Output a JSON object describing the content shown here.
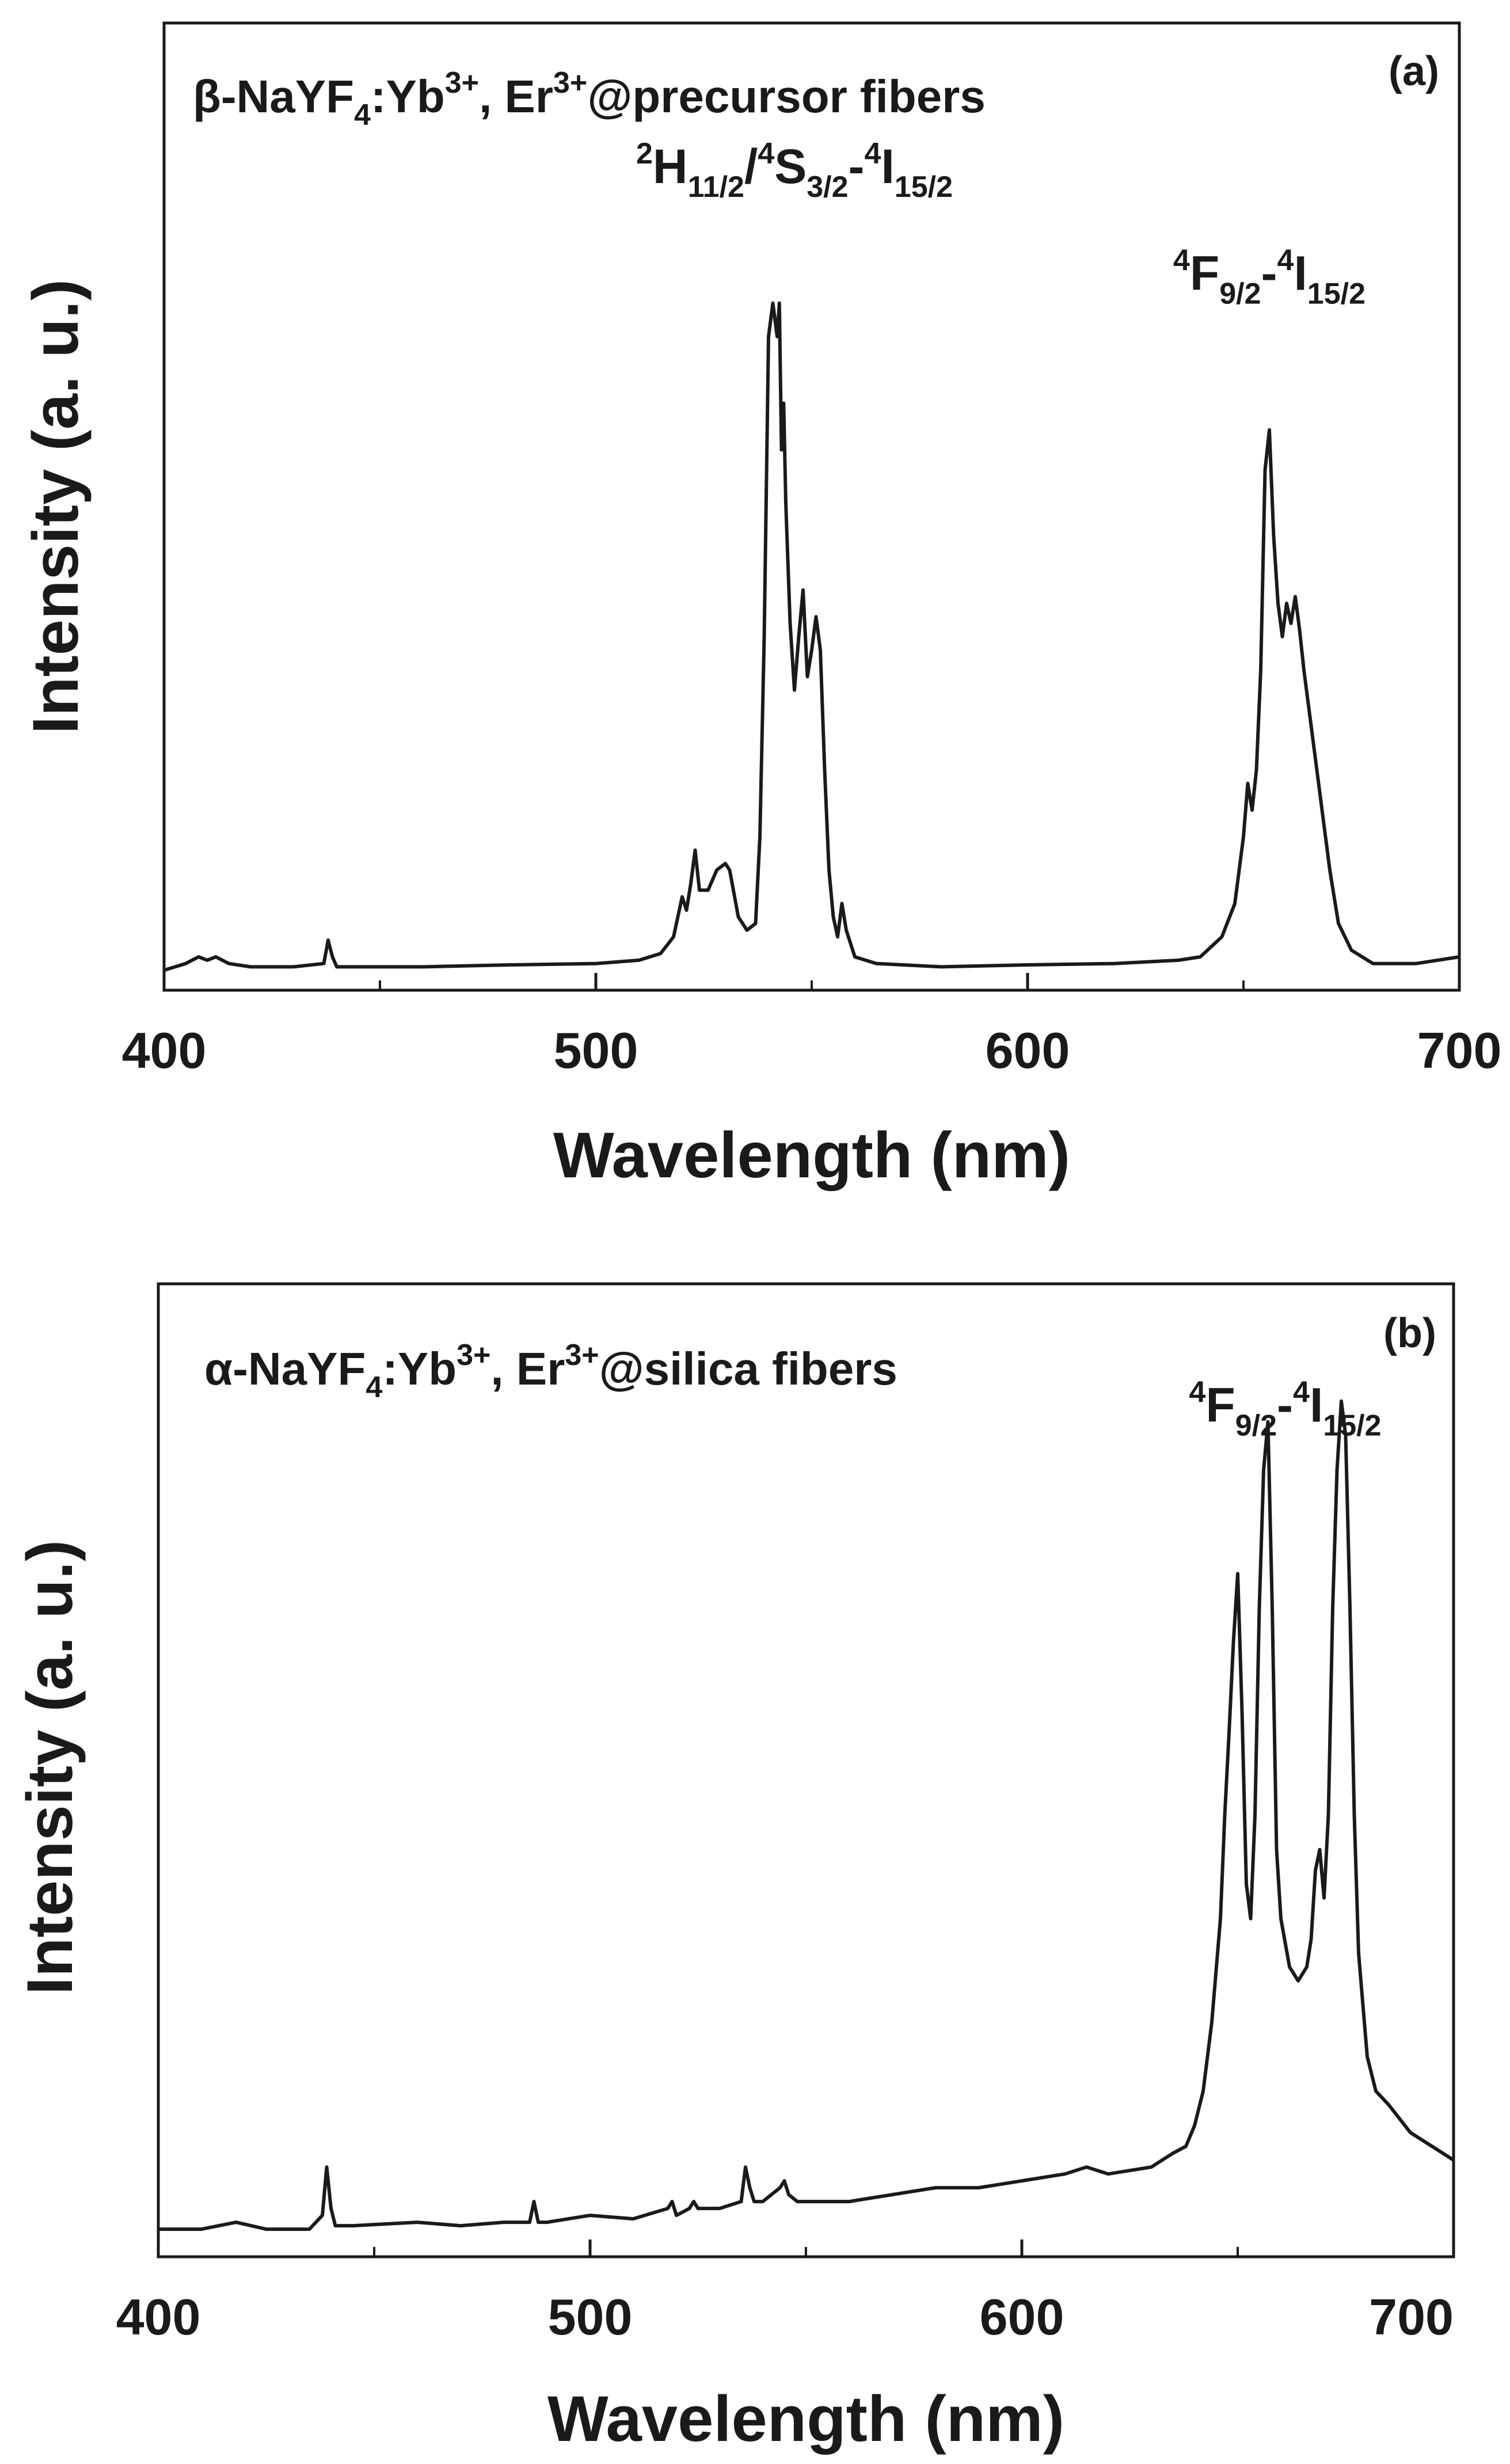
{
  "chart_data": [
    {
      "type": "line",
      "panel_label": "(a)",
      "sample": {
        "greek": "β",
        "text1": "-NaYF",
        "sub1": "4",
        "text2": ":Yb",
        "sup1": "3+",
        "text3": ", Er",
        "sup2": "3+",
        "text4": "@precursor fibers"
      },
      "annotations": [
        {
          "id": "green",
          "parts": [
            {
              "t": "2",
              "s": "sup"
            },
            {
              "t": "H",
              "s": "n"
            },
            {
              "t": "11/2",
              "s": "sub"
            },
            {
              "t": "/",
              "s": "n"
            },
            {
              "t": "4",
              "s": "sup"
            },
            {
              "t": "S",
              "s": "n"
            },
            {
              "t": "3/2",
              "s": "sub"
            },
            {
              "t": "-",
              "s": "n"
            },
            {
              "t": "4",
              "s": "sup"
            },
            {
              "t": "I",
              "s": "n"
            },
            {
              "t": "15/2",
              "s": "sub"
            }
          ],
          "x": 546,
          "y": 1.18
        },
        {
          "id": "red",
          "parts": [
            {
              "t": "4",
              "s": "sup"
            },
            {
              "t": "F",
              "s": "n"
            },
            {
              "t": "9/2",
              "s": "sub"
            },
            {
              "t": "-",
              "s": "n"
            },
            {
              "t": "4",
              "s": "sup"
            },
            {
              "t": "I",
              "s": "n"
            },
            {
              "t": "15/2",
              "s": "sub"
            }
          ],
          "x": 656,
          "y": 1.02
        }
      ],
      "xlabel": "Wavelength (nm)",
      "ylabel": "Intensity (a. u.)",
      "xlim": [
        400,
        700
      ],
      "ylim": [
        -0.03,
        1.42
      ],
      "xticks": [
        400,
        500,
        600,
        700
      ],
      "xtick_labels": [
        "400",
        "500",
        "600",
        "700"
      ],
      "series": [
        {
          "name": "β-NaYF4:Yb3+, Er3+@precursor fibers",
          "x": [
            400,
            405,
            408,
            410,
            412,
            415,
            420,
            430,
            437,
            438,
            439,
            440,
            441,
            445,
            460,
            480,
            500,
            510,
            515,
            518,
            520,
            521,
            522,
            523,
            524,
            526,
            528,
            530,
            531,
            533,
            535,
            537,
            538,
            539,
            540,
            541,
            542,
            542.5,
            543,
            543.5,
            544,
            545,
            546,
            547,
            548,
            549,
            550,
            551,
            552,
            553,
            554,
            555,
            556,
            557,
            558,
            560,
            565,
            580,
            600,
            620,
            635,
            640,
            645,
            648,
            650,
            651,
            652,
            653,
            654,
            655,
            656,
            657,
            658,
            659,
            660,
            661,
            662,
            663,
            664,
            666,
            668,
            670,
            672,
            675,
            680,
            690,
            700
          ],
          "y": [
            0.0,
            0.01,
            0.02,
            0.015,
            0.02,
            0.01,
            0.005,
            0.005,
            0.01,
            0.045,
            0.02,
            0.005,
            0.005,
            0.005,
            0.005,
            0.008,
            0.01,
            0.015,
            0.025,
            0.05,
            0.11,
            0.09,
            0.13,
            0.18,
            0.12,
            0.12,
            0.15,
            0.16,
            0.15,
            0.08,
            0.06,
            0.07,
            0.2,
            0.5,
            0.95,
            1.0,
            0.95,
            1.0,
            0.78,
            0.85,
            0.7,
            0.52,
            0.42,
            0.5,
            0.57,
            0.44,
            0.48,
            0.53,
            0.48,
            0.3,
            0.15,
            0.08,
            0.05,
            0.1,
            0.06,
            0.02,
            0.01,
            0.005,
            0.008,
            0.01,
            0.015,
            0.02,
            0.05,
            0.1,
            0.2,
            0.28,
            0.24,
            0.3,
            0.45,
            0.75,
            0.81,
            0.65,
            0.55,
            0.5,
            0.55,
            0.52,
            0.56,
            0.51,
            0.45,
            0.35,
            0.25,
            0.15,
            0.07,
            0.03,
            0.01,
            0.01,
            0.02
          ]
        }
      ]
    },
    {
      "type": "line",
      "panel_label": "(b)",
      "sample": {
        "greek": "α",
        "text1": "-NaYF",
        "sub1": "4",
        "text2": ":Yb",
        "sup1": "3+",
        "text3": ", Er",
        "sup2": "3+",
        "text4": "@silica fibers"
      },
      "annotations": [
        {
          "id": "red",
          "parts": [
            {
              "t": "4",
              "s": "sup"
            },
            {
              "t": "F",
              "s": "n"
            },
            {
              "t": "9/2",
              "s": "sub"
            },
            {
              "t": "-",
              "s": "n"
            },
            {
              "t": "4",
              "s": "sup"
            },
            {
              "t": "I",
              "s": "n"
            },
            {
              "t": "15/2",
              "s": "sub"
            }
          ],
          "x": 661,
          "y": 1.17
        }
      ],
      "xlabel": "Wavelength (nm)",
      "ylabel": "Intensity (a. u.)",
      "xlim": [
        400,
        700
      ],
      "ylim": [
        -0.04,
        1.37
      ],
      "xticks": [
        400,
        500,
        600,
        700
      ],
      "xtick_labels": [
        "400",
        "500",
        "600",
        "700"
      ],
      "series": [
        {
          "name": "α-NaYF4:Yb3+, Er3+@silica fibers",
          "x": [
            400,
            410,
            418,
            425,
            435,
            438,
            439,
            440,
            441,
            445,
            460,
            470,
            480,
            486,
            487,
            488,
            490,
            500,
            510,
            518,
            519,
            520,
            523,
            524,
            525,
            530,
            535,
            536,
            537,
            538,
            540,
            544,
            545,
            546,
            548,
            550,
            560,
            570,
            580,
            590,
            600,
            610,
            615,
            620,
            630,
            635,
            638,
            640,
            642,
            644,
            646,
            647,
            648,
            649,
            650,
            651,
            652,
            653,
            654,
            655,
            656,
            657,
            658,
            659,
            660,
            662,
            664,
            666,
            667,
            668,
            669,
            670,
            671,
            672,
            673,
            674,
            675,
            676,
            677,
            678,
            680,
            682,
            685,
            690,
            695,
            700
          ],
          "y": [
            0.0,
            0.0,
            0.01,
            0.0,
            0.0,
            0.02,
            0.09,
            0.03,
            0.005,
            0.005,
            0.01,
            0.005,
            0.01,
            0.01,
            0.04,
            0.01,
            0.01,
            0.02,
            0.015,
            0.03,
            0.04,
            0.02,
            0.03,
            0.04,
            0.03,
            0.03,
            0.04,
            0.09,
            0.06,
            0.04,
            0.04,
            0.06,
            0.07,
            0.05,
            0.04,
            0.04,
            0.04,
            0.05,
            0.06,
            0.06,
            0.07,
            0.08,
            0.09,
            0.08,
            0.09,
            0.11,
            0.12,
            0.15,
            0.2,
            0.3,
            0.45,
            0.6,
            0.72,
            0.85,
            0.95,
            0.75,
            0.5,
            0.45,
            0.6,
            0.9,
            1.1,
            1.17,
            0.9,
            0.55,
            0.45,
            0.38,
            0.36,
            0.38,
            0.42,
            0.52,
            0.55,
            0.48,
            0.6,
            0.9,
            1.1,
            1.2,
            1.15,
            0.9,
            0.6,
            0.4,
            0.25,
            0.2,
            0.18,
            0.14,
            0.12,
            0.1
          ]
        }
      ]
    }
  ]
}
